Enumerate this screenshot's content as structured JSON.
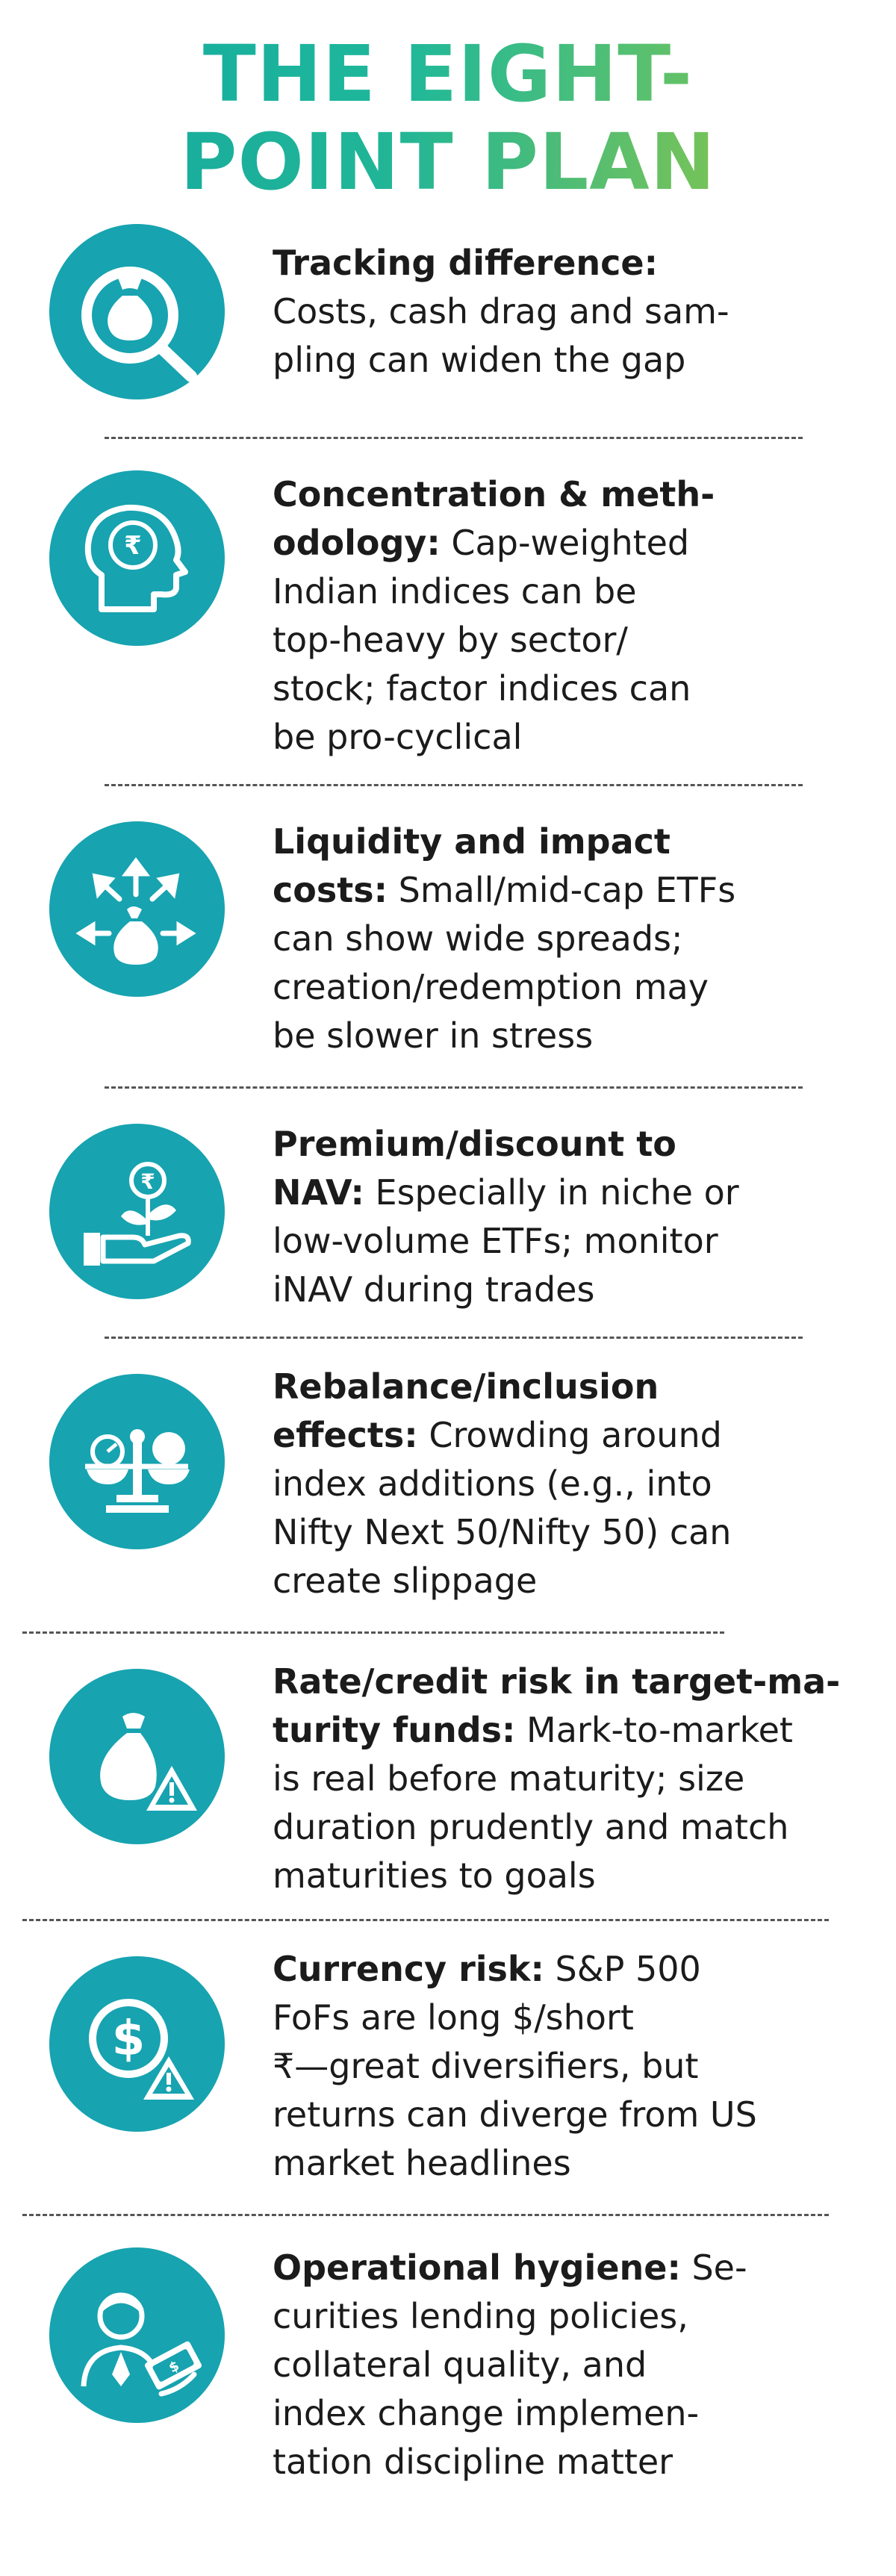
{
  "title": {
    "line1": "THE EIGHT-",
    "line2": "POINT PLAN"
  },
  "colors": {
    "icon_bg": "#17a3b0",
    "title_start": "#13a7a2",
    "title_end": "#8cc63f",
    "text": "#1b1b1b"
  },
  "items": [
    {
      "icon": "money-bag-magnifier-icon",
      "bold": "Tracking difference:",
      "lines": [
        "Costs, cash drag and sam-",
        "pling can widen the gap"
      ]
    },
    {
      "icon": "head-rupee-brain-icon",
      "bold": "Concentration & meth-",
      "bold2": "odology:",
      "lines": [
        " Cap-weighted",
        "Indian indices can be",
        "top-heavy by sector/",
        "stock; factor indices can",
        "be pro-cyclical"
      ]
    },
    {
      "icon": "money-bag-arrows-icon",
      "bold": "Liquidity and impact",
      "bold2": "costs:",
      "lines": [
        " Small/mid-cap ETFs",
        "can show wide spreads;",
        "creation/redemption may",
        "be slower in stress"
      ]
    },
    {
      "icon": "hand-plant-rupee-icon",
      "bold": "Premium/discount to",
      "bold2": "NAV:",
      "lines": [
        " Especially in niche or",
        "low-volume ETFs; monitor",
        "iNAV during trades"
      ]
    },
    {
      "icon": "balance-scale-icon",
      "bold": "Rebalance/inclusion",
      "bold2": "effects:",
      "lines": [
        " Crowding around",
        "index additions (e.g., into",
        "Nifty Next 50/Nifty 50) can",
        "create slippage"
      ]
    },
    {
      "icon": "money-bag-warning-icon",
      "bold": "Rate/credit risk in target-ma-",
      "bold2": "turity funds:",
      "lines": [
        " Mark-to-market",
        "is real before maturity; size",
        "duration prudently and match",
        "maturities to goals"
      ]
    },
    {
      "icon": "dollar-warning-icon",
      "bold": "Currency risk:",
      "lines": [
        " S&P 500",
        "FoFs are long $/short",
        "₹—great diversifiers, but",
        "returns can diverge from US",
        "market headlines"
      ]
    },
    {
      "icon": "person-cash-icon",
      "bold": "Operational hygiene:",
      "lines": [
        " Se-",
        "curities lending policies,",
        "collateral quality, and",
        "index change implemen-",
        "tation discipline matter"
      ]
    }
  ]
}
